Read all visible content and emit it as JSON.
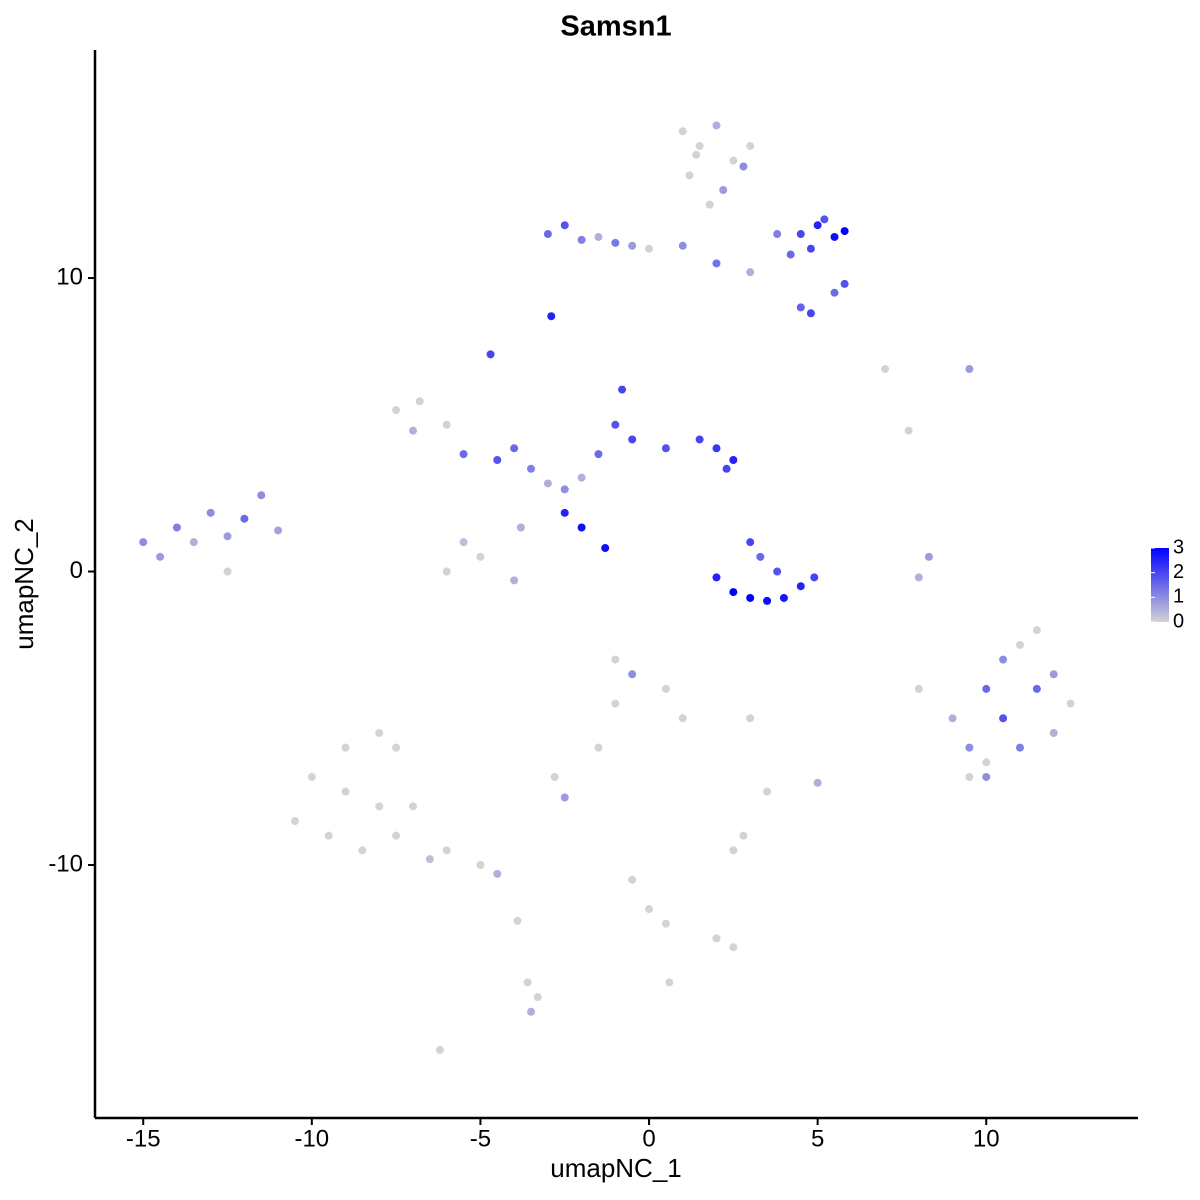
{
  "chart_data": {
    "type": "scatter",
    "title": "Samsn1",
    "x_label": "umapNC_1",
    "y_label": "umapNC_2",
    "x": [
      1,
      1.5,
      2,
      2.5,
      1.2,
      2.2,
      3,
      1.8,
      2.8,
      1.4,
      4.5,
      5,
      5.5,
      5.8,
      4.2,
      4.8,
      5.2,
      3.8,
      5.5,
      5.8,
      4.8,
      4.5,
      -3,
      -2.5,
      -2,
      -1.5,
      -1,
      -0.5,
      0,
      1,
      2,
      3,
      -2.9,
      -4.7,
      7,
      9.5,
      7.7,
      -7.5,
      -6.8,
      -7,
      -6,
      -5.5,
      -4.5,
      -4,
      -3.5,
      -3,
      -2.5,
      -2,
      -1.5,
      -1,
      -0.8,
      -0.5,
      0.5,
      1.5,
      2,
      2.5,
      2.3,
      -3.8,
      -5,
      -6,
      -5.5,
      -4,
      -2.5,
      -2,
      -1.3,
      -15,
      -14.5,
      -14,
      -13.5,
      -13,
      -12.5,
      -12,
      -11.5,
      -11,
      -12.5,
      2,
      2.5,
      3,
      3.5,
      4,
      4.5,
      4.9,
      3,
      3.3,
      3.8,
      8,
      8.3,
      9,
      9.5,
      10,
      10.5,
      11,
      11.5,
      12,
      12.5,
      10,
      11,
      10.5,
      12,
      9.5,
      8,
      11.5,
      10,
      -1,
      -0.5,
      0.5,
      1,
      -1,
      -1.5,
      -2.8,
      -2.5,
      -9,
      -8,
      -7.5,
      -10,
      -9,
      -8,
      -10.5,
      -9.5,
      -8.5,
      -7.5,
      -7,
      -6,
      -5,
      -4.5,
      -6.5,
      -3.9,
      -3.6,
      -3.3,
      -3.5,
      -6.2,
      -0.5,
      0,
      0.5,
      2,
      2.5,
      0.6,
      2.5,
      2.8,
      3,
      3.5,
      5
    ],
    "y": [
      15,
      14.5,
      15.2,
      14,
      13.5,
      13,
      14.5,
      12.5,
      13.8,
      14.2,
      11.5,
      11.8,
      11.4,
      11.6,
      10.8,
      11,
      12,
      11.5,
      9.5,
      9.8,
      8.8,
      9,
      11.5,
      11.8,
      11.3,
      11.4,
      11.2,
      11.1,
      11,
      11.1,
      10.5,
      10.2,
      8.7,
      7.4,
      6.9,
      6.9,
      4.8,
      5.5,
      5.8,
      4.8,
      5,
      4,
      3.8,
      4.2,
      3.5,
      3,
      2.8,
      3.2,
      4,
      5,
      6.2,
      4.5,
      4.2,
      4.5,
      4.2,
      3.8,
      3.5,
      1.5,
      0.5,
      0,
      1,
      -0.3,
      2,
      1.5,
      0.8,
      1,
      0.5,
      1.5,
      1,
      2,
      1.2,
      1.8,
      2.6,
      1.4,
      0,
      -0.2,
      -0.7,
      -0.9,
      -1,
      -0.9,
      -0.5,
      -0.2,
      1,
      0.5,
      0,
      -0.2,
      0.5,
      -5,
      -6,
      -4,
      -3,
      -2.5,
      -4,
      -3.5,
      -4.5,
      -6.5,
      -6,
      -5,
      -5.5,
      -7,
      -4,
      -2,
      -7,
      -3,
      -3.5,
      -4,
      -5,
      -4.5,
      -6,
      -7,
      -7.7,
      -6,
      -5.5,
      -6,
      -7,
      -7.5,
      -8,
      -8.5,
      -9,
      -9.5,
      -9,
      -8,
      -9.5,
      -10,
      -10.3,
      -9.8,
      -11.9,
      -14,
      -14.5,
      -15,
      -16.3,
      -10.5,
      -11.5,
      -12,
      -12.5,
      -12.8,
      -14,
      -9.5,
      -9,
      -5,
      -7.5,
      -7.2
    ],
    "values": [
      0,
      0,
      0.5,
      0,
      0,
      0.8,
      0,
      0,
      1,
      0,
      2,
      2.5,
      2.8,
      3,
      1.5,
      2,
      1.8,
      1.2,
      1.5,
      1.8,
      2,
      1.6,
      1.5,
      1.8,
      1.2,
      0.5,
      1.3,
      0.8,
      0,
      1,
      1.4,
      0.5,
      2.5,
      2,
      0,
      0.8,
      0,
      0,
      0,
      0.5,
      0,
      1.5,
      1.8,
      1.5,
      1.2,
      0.5,
      1,
      0.5,
      1.5,
      1.8,
      2,
      2,
      1.8,
      2,
      2.2,
      2.5,
      2,
      0.5,
      0,
      0,
      0.3,
      0.5,
      2.5,
      2.8,
      2.8,
      1,
      0.8,
      1.2,
      0.5,
      1,
      0.8,
      1.5,
      1,
      0.7,
      0,
      2.5,
      3,
      3,
      2.8,
      2.7,
      2.5,
      2,
      2,
      1.5,
      1.8,
      0.5,
      0.8,
      0.5,
      1,
      1.5,
      1,
      0,
      1.5,
      0.8,
      0,
      0,
      1.2,
      1.8,
      0.5,
      0,
      0,
      0,
      1,
      0,
      1,
      0,
      0,
      0,
      0,
      0,
      0.8,
      0,
      0,
      0,
      0,
      0,
      0,
      0,
      0,
      0,
      0,
      0,
      0,
      0,
      0.5,
      0.3,
      0,
      0,
      0,
      0.5,
      0,
      0,
      0,
      0,
      0,
      0,
      0,
      0,
      0,
      0,
      0,
      0.5
    ],
    "xlim": [
      -16.43,
      14.5
    ],
    "ylim": [
      -18.62,
      17.77
    ],
    "xticks": [
      -15,
      -10,
      -5,
      0,
      5,
      10
    ],
    "yticks": [
      -10,
      0,
      10
    ],
    "color_low": "#d3d3d3",
    "color_high": "#0000ff",
    "color_lim": [
      0,
      3
    ],
    "color_ticks": [
      0,
      1,
      2,
      3
    ]
  }
}
